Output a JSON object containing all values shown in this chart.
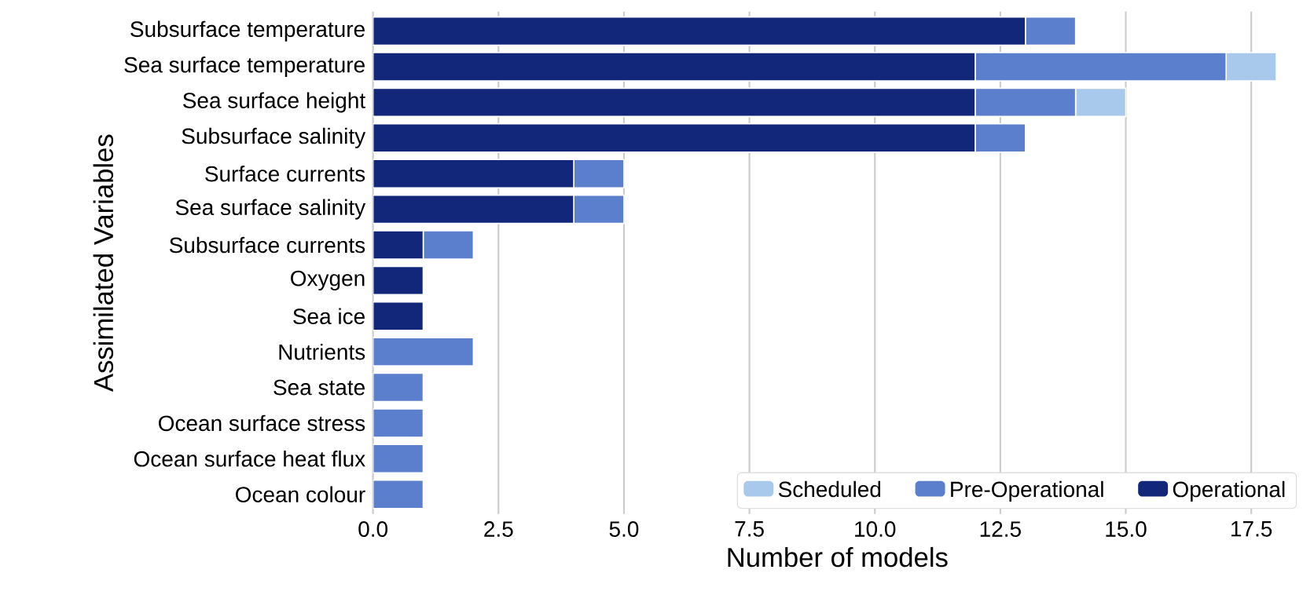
{
  "chart_data": {
    "type": "bar",
    "orientation": "horizontal",
    "stacked": true,
    "xlabel": "Number of models",
    "ylabel": "Assimilated Variables",
    "categories": [
      "Subsurface temperature",
      "Sea surface temperature",
      "Sea surface height",
      "Subsurface salinity",
      "Surface currents",
      "Sea surface salinity",
      "Subsurface currents",
      "Oxygen",
      "Sea ice",
      "Nutrients",
      "Sea state",
      "Ocean surface stress",
      "Ocean surface heat flux",
      "Ocean colour"
    ],
    "series": [
      {
        "name": "Operational",
        "color": "#13277a",
        "values": [
          13,
          12,
          12,
          12,
          4,
          4,
          1,
          1,
          1,
          0,
          0,
          0,
          0,
          0
        ]
      },
      {
        "name": "Pre-Operational",
        "color": "#5b7fcc",
        "values": [
          1,
          5,
          2,
          1,
          1,
          1,
          1,
          0,
          0,
          2,
          1,
          1,
          1,
          1
        ]
      },
      {
        "name": "Scheduled",
        "color": "#a9c9ec",
        "values": [
          0,
          1,
          1,
          0,
          0,
          0,
          0,
          0,
          0,
          0,
          0,
          0,
          0,
          0
        ]
      }
    ],
    "xlim": [
      0,
      18.5
    ],
    "xticks": [
      {
        "value": 0,
        "label": "0.0"
      },
      {
        "value": 2.5,
        "label": "2.5"
      },
      {
        "value": 5,
        "label": "5.0"
      },
      {
        "value": 7.5,
        "label": "7.5"
      },
      {
        "value": 10,
        "label": "10.0"
      },
      {
        "value": 12.5,
        "label": "12.5"
      },
      {
        "value": 15,
        "label": "15.0"
      },
      {
        "value": 17.5,
        "label": "17.5"
      }
    ],
    "grid": "x",
    "legend": "bottom right"
  }
}
